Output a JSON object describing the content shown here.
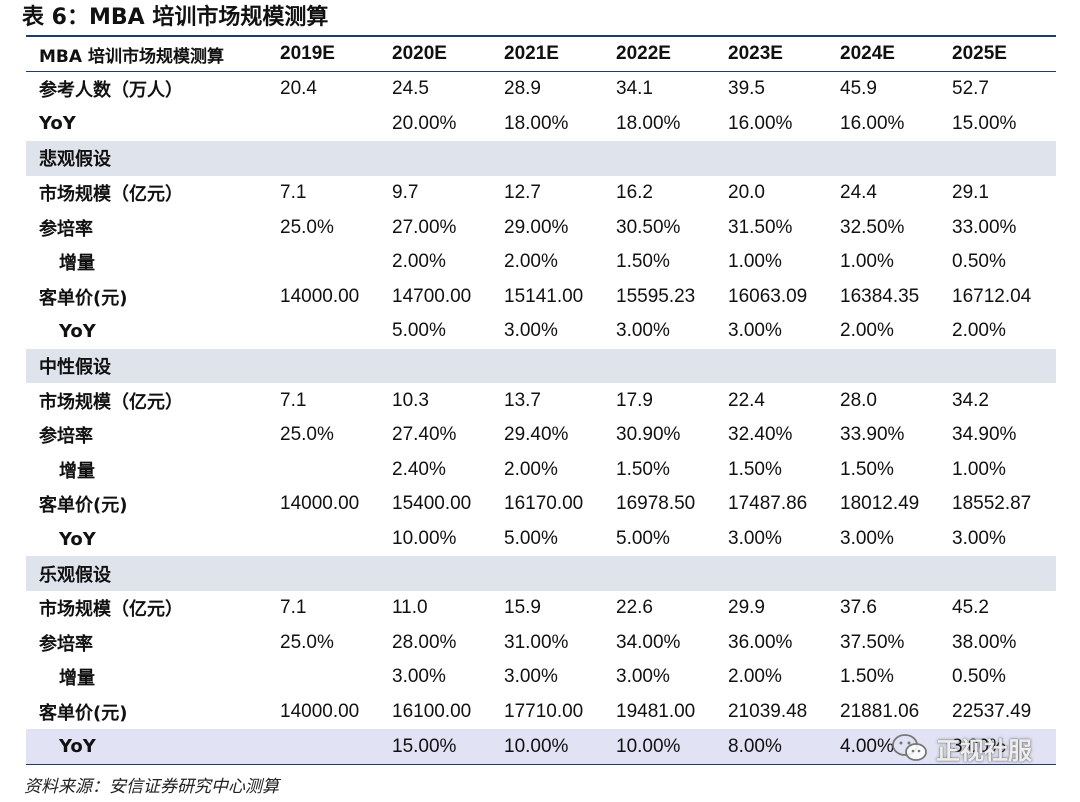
{
  "title": "表 6：MBA 培训市场规模测算",
  "table": {
    "header": [
      "MBA 培训市场规模测算",
      "2019E",
      "2020E",
      "2021E",
      "2022E",
      "2023E",
      "2024E",
      "2025E"
    ],
    "rows": [
      {
        "type": "data",
        "label": "参考人数（万人）",
        "indent": false,
        "values": [
          "20.4",
          "24.5",
          "28.9",
          "34.1",
          "39.5",
          "45.9",
          "52.7"
        ]
      },
      {
        "type": "data",
        "label": "YoY",
        "indent": false,
        "values": [
          "",
          "20.00%",
          "18.00%",
          "18.00%",
          "16.00%",
          "16.00%",
          "15.00%"
        ]
      },
      {
        "type": "section",
        "label": "悲观假设"
      },
      {
        "type": "data",
        "label": "市场规模（亿元）",
        "indent": false,
        "values": [
          "7.1",
          "9.7",
          "12.7",
          "16.2",
          "20.0",
          "24.4",
          "29.1"
        ]
      },
      {
        "type": "data",
        "label": "参培率",
        "indent": false,
        "values": [
          "25.0%",
          "27.00%",
          "29.00%",
          "30.50%",
          "31.50%",
          "32.50%",
          "33.00%"
        ]
      },
      {
        "type": "data",
        "label": "增量",
        "indent": true,
        "values": [
          "",
          "2.00%",
          "2.00%",
          "1.50%",
          "1.00%",
          "1.00%",
          "0.50%"
        ]
      },
      {
        "type": "data",
        "label": "客单价(元)",
        "indent": false,
        "values": [
          "14000.00",
          "14700.00",
          "15141.00",
          "15595.23",
          "16063.09",
          "16384.35",
          "16712.04"
        ]
      },
      {
        "type": "data",
        "label": "YoY",
        "indent": true,
        "values": [
          "",
          "5.00%",
          "3.00%",
          "3.00%",
          "3.00%",
          "2.00%",
          "2.00%"
        ]
      },
      {
        "type": "section",
        "label": "中性假设"
      },
      {
        "type": "data",
        "label": "市场规模（亿元）",
        "indent": false,
        "values": [
          "7.1",
          "10.3",
          "13.7",
          "17.9",
          "22.4",
          "28.0",
          "34.2"
        ]
      },
      {
        "type": "data",
        "label": "参培率",
        "indent": false,
        "values": [
          "25.0%",
          "27.40%",
          "29.40%",
          "30.90%",
          "32.40%",
          "33.90%",
          "34.90%"
        ]
      },
      {
        "type": "data",
        "label": "增量",
        "indent": true,
        "values": [
          "",
          "2.40%",
          "2.00%",
          "1.50%",
          "1.50%",
          "1.50%",
          "1.00%"
        ]
      },
      {
        "type": "data",
        "label": "客单价(元)",
        "indent": false,
        "values": [
          "14000.00",
          "15400.00",
          "16170.00",
          "16978.50",
          "17487.86",
          "18012.49",
          "18552.87"
        ]
      },
      {
        "type": "data",
        "label": "YoY",
        "indent": true,
        "values": [
          "",
          "10.00%",
          "5.00%",
          "5.00%",
          "3.00%",
          "3.00%",
          "3.00%"
        ]
      },
      {
        "type": "section",
        "label": "乐观假设"
      },
      {
        "type": "data",
        "label": "市场规模（亿元）",
        "indent": false,
        "values": [
          "7.1",
          "11.0",
          "15.9",
          "22.6",
          "29.9",
          "37.6",
          "45.2"
        ]
      },
      {
        "type": "data",
        "label": "参培率",
        "indent": false,
        "values": [
          "25.0%",
          "28.00%",
          "31.00%",
          "34.00%",
          "36.00%",
          "37.50%",
          "38.00%"
        ]
      },
      {
        "type": "data",
        "label": "增量",
        "indent": true,
        "values": [
          "",
          "3.00%",
          "3.00%",
          "3.00%",
          "2.00%",
          "1.50%",
          "0.50%"
        ]
      },
      {
        "type": "data",
        "label": "客单价(元)",
        "indent": false,
        "values": [
          "14000.00",
          "16100.00",
          "17710.00",
          "19481.00",
          "21039.48",
          "21881.06",
          "22537.49"
        ]
      },
      {
        "type": "last",
        "label": "YoY",
        "indent": true,
        "values": [
          "",
          "15.00%",
          "10.00%",
          "10.00%",
          "8.00%",
          "4.00%",
          "3.00%"
        ]
      }
    ]
  },
  "source": "资料来源：安信证券研究中心测算",
  "watermark": {
    "icon": "wechat-icon",
    "text": "正视社服"
  },
  "colors": {
    "rule": "#1f3a6d",
    "section_bg": "#dfe3ec",
    "last_row_bg": "#e1e2f3"
  }
}
